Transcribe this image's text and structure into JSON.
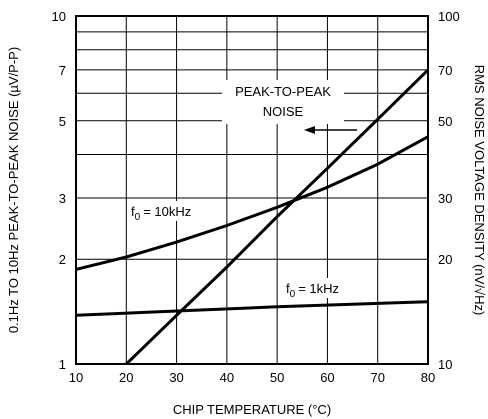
{
  "chart_data": {
    "type": "line",
    "xlabel": "CHIP TEMPERATURE (°C)",
    "ylabel_left": "0.1Hz TO 10Hz PEAK-TO-PEAK NOISE (µV/P-P)",
    "ylabel_right": "RMS NOISE VOLTAGE DENSITY (nV/√Hz)",
    "xlim": [
      10,
      80
    ],
    "ylim_left": [
      1,
      10
    ],
    "ylim_right": [
      10,
      100
    ],
    "yscale": "log",
    "grid": true,
    "x_ticks": [
      "10",
      "20",
      "30",
      "40",
      "50",
      "60",
      "70",
      "80"
    ],
    "y_left_ticks": [
      {
        "value": 1,
        "label": "1"
      },
      {
        "value": 2,
        "label": "2"
      },
      {
        "value": 3,
        "label": "3"
      },
      {
        "value": 5,
        "label": "5"
      },
      {
        "value": 7,
        "label": "7"
      },
      {
        "value": 10,
        "label": "10"
      }
    ],
    "y_right_ticks": [
      {
        "value": 10,
        "label": "10"
      },
      {
        "value": 20,
        "label": "20"
      },
      {
        "value": 30,
        "label": "30"
      },
      {
        "value": 50,
        "label": "50"
      },
      {
        "value": 70,
        "label": "70"
      },
      {
        "value": 100,
        "label": "100"
      }
    ],
    "series": [
      {
        "name": "PEAK-TO-PEAK NOISE",
        "axis": "left",
        "x": [
          20,
          30,
          40,
          50,
          60,
          70,
          80
        ],
        "y": [
          1.0,
          1.38,
          1.9,
          2.65,
          3.65,
          5.05,
          7.0
        ]
      },
      {
        "name": "f0 = 10kHz",
        "axis": "right",
        "x": [
          10,
          20,
          30,
          40,
          50,
          60,
          70,
          80
        ],
        "y": [
          18.7,
          20.3,
          22.4,
          25.0,
          28.2,
          32.2,
          37.5,
          45.0
        ]
      },
      {
        "name": "f0 = 1kHz",
        "axis": "right",
        "x": [
          10,
          30,
          50,
          80
        ],
        "y": [
          13.8,
          14.2,
          14.6,
          15.1
        ]
      }
    ],
    "annotations": {
      "peak_line1": "PEAK-TO-PEAK",
      "peak_line2": "NOISE",
      "f10k": "= 10kHz",
      "f1k": "= 1kHz",
      "f_symbol": "f",
      "f_sub": "0"
    }
  }
}
